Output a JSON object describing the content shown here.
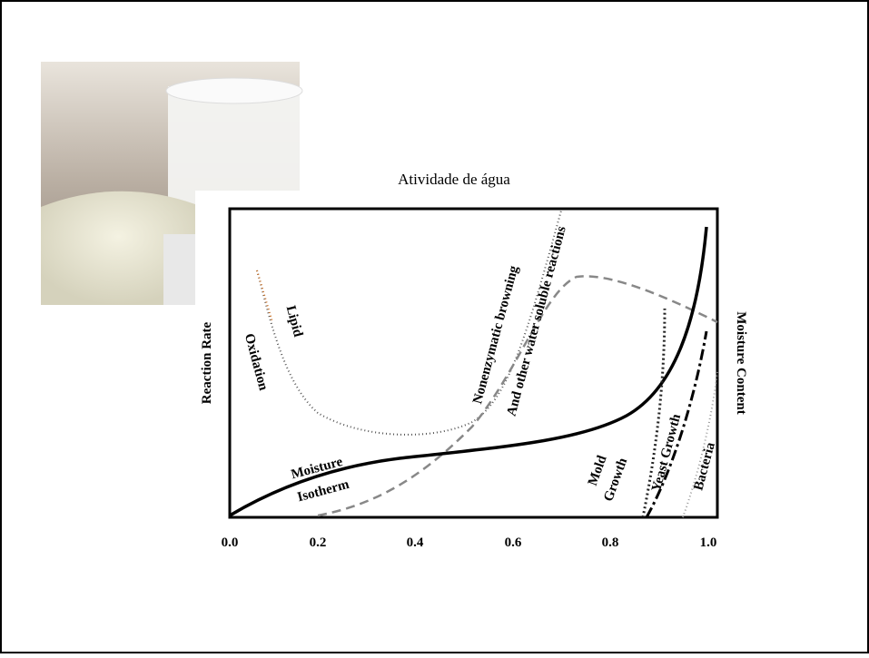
{
  "slide": {
    "title": "Atividade de água"
  },
  "figure": {
    "y_axis_label": "Reaction Rate",
    "y2_axis_label": "Moisture Content",
    "x_tick_labels": [
      "0.0",
      "0.2",
      "0.4",
      "0.6",
      "0.8",
      "1.0"
    ],
    "curve_labels": [
      "Lipid",
      "Oxidation",
      "Nonenzymatic browning",
      "And other water soluble reactions",
      "Moisture",
      "Isotherm",
      "Mold",
      "Growth",
      "Yeast Growth",
      "Bacteria"
    ]
  }
}
